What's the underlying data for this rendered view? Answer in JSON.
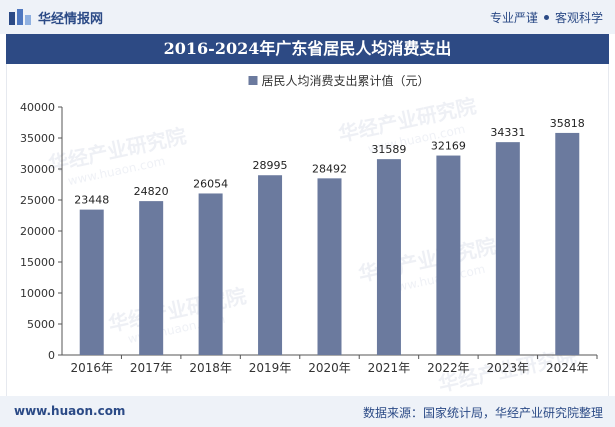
{
  "header": {
    "brand_name": "华经情报网",
    "slogan_left": "专业严谨",
    "slogan_right": "客观科学"
  },
  "footer": {
    "website": "www.huaon.com",
    "source": "数据来源：国家统计局，华经产业研究院整理"
  },
  "watermark": {
    "text": "华经产业研究院",
    "url": "www.huaon.com"
  },
  "colors": {
    "bar": "#6b7a9e",
    "title_band": "#2d4a84",
    "brand": "#2b4a86"
  },
  "chart_data": {
    "type": "bar",
    "title": "2016-2024年广东省居民人均消费支出",
    "categories": [
      "2016年",
      "2017年",
      "2018年",
      "2019年",
      "2020年",
      "2021年",
      "2022年",
      "2023年",
      "2024年"
    ],
    "series": [
      {
        "name": "居民人均消费支出累计值（元）",
        "values": [
          23448,
          24820,
          26054,
          28995,
          28492,
          31589,
          32169,
          34331,
          35818
        ]
      }
    ],
    "ylim": [
      0,
      40000
    ],
    "yticks": [
      0,
      5000,
      10000,
      15000,
      20000,
      25000,
      30000,
      35000,
      40000
    ],
    "legend_position": "top-center",
    "grid": false,
    "data_labels": true
  }
}
